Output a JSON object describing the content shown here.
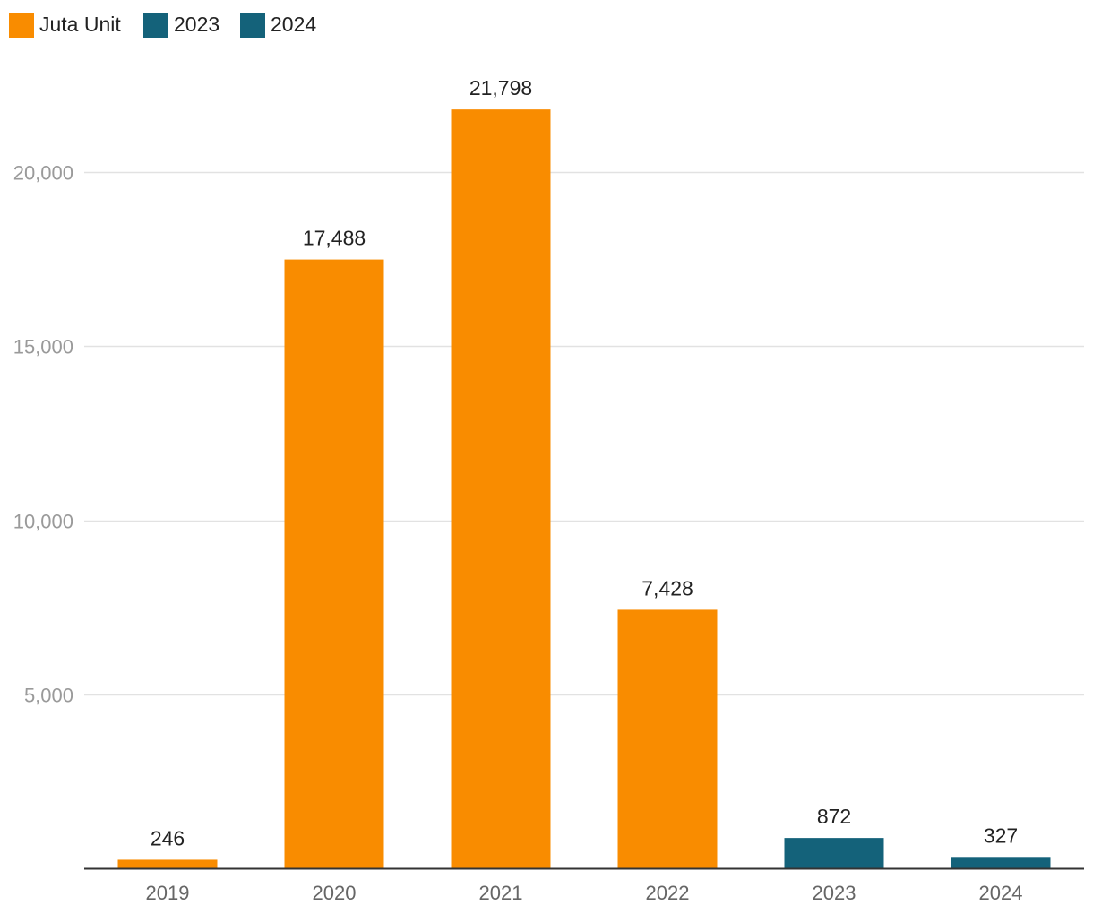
{
  "chart_data": {
    "type": "bar",
    "categories": [
      "2019",
      "2020",
      "2021",
      "2022",
      "2023",
      "2024"
    ],
    "values": [
      246,
      17488,
      21798,
      7428,
      872,
      327
    ],
    "value_labels": [
      "246",
      "17,488",
      "21,798",
      "7,428",
      "872",
      "327"
    ],
    "bar_colors": [
      "#f98c00",
      "#f98c00",
      "#f98c00",
      "#f98c00",
      "#14627a",
      "#14627a"
    ],
    "legend": [
      {
        "label": "Juta Unit",
        "color": "#f98c00"
      },
      {
        "label": "2023",
        "color": "#14627a"
      },
      {
        "label": "2024",
        "color": "#14627a"
      }
    ],
    "legend_position": "top-left",
    "y_ticks": [
      5000,
      10000,
      15000,
      20000
    ],
    "y_tick_labels": [
      "5,000",
      "10,000",
      "15,000",
      "20,000"
    ],
    "ylim": [
      0,
      23000
    ],
    "grid": true,
    "title": "",
    "xlabel": "",
    "ylabel": ""
  }
}
